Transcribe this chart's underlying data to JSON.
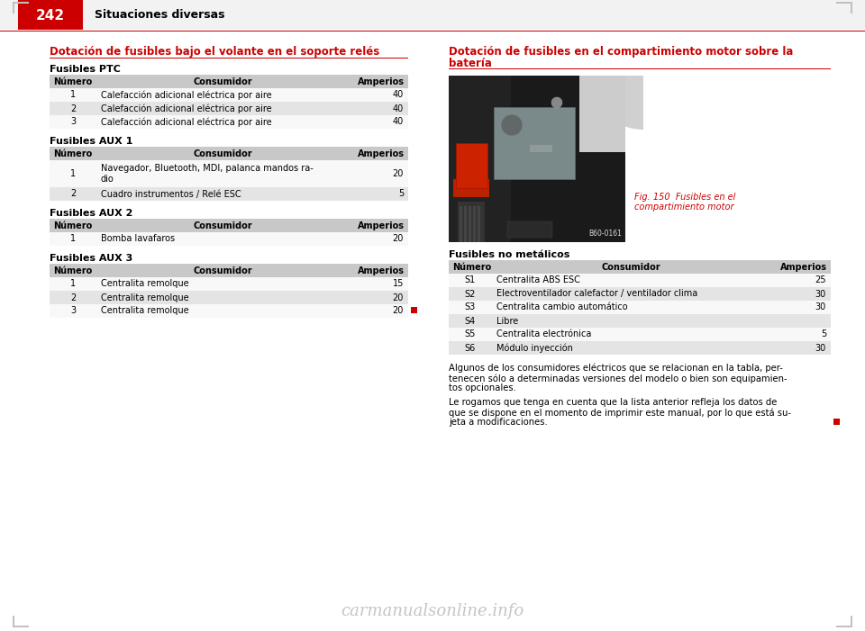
{
  "page_number": "242",
  "header_section": "Situaciones diversas",
  "bg_color": "#ffffff",
  "header_bg": "#cc0000",
  "section1_title": "Dotación de fusibles bajo el volante en el soporte relés",
  "section2_title_line1": "Dotación de fusibles en el compartimiento motor sobre la",
  "section2_title_line2": "batería",
  "ptc_label": "Fusibles PTC",
  "aux1_label": "Fusibles AUX 1",
  "aux2_label": "Fusibles AUX 2",
  "aux3_label": "Fusibles AUX 3",
  "no_metalicos_label": "Fusibles no metálicos",
  "col_headers": [
    "Número",
    "Consumidor",
    "Amperios"
  ],
  "ptc_rows": [
    [
      "1",
      "Calefacción adicional eléctrica por aire",
      "40"
    ],
    [
      "2",
      "Calefacción adicional eléctrica por aire",
      "40"
    ],
    [
      "3",
      "Calefacción adicional eléctrica por aire",
      "40"
    ]
  ],
  "aux1_rows": [
    [
      "1",
      "Navegador, Bluetooth, MDI, palanca mandos ra-\ndio",
      "20"
    ],
    [
      "2",
      "Cuadro instrumentos / Relé ESC",
      "5"
    ]
  ],
  "aux2_rows": [
    [
      "1",
      "Bomba lavafaros",
      "20"
    ]
  ],
  "aux3_rows": [
    [
      "1",
      "Centralita remolque",
      "15"
    ],
    [
      "2",
      "Centralita remolque",
      "20"
    ],
    [
      "3",
      "Centralita remolque",
      "20"
    ]
  ],
  "no_metalicos_rows": [
    [
      "S1",
      "Centralita ABS ESC",
      "25"
    ],
    [
      "S2",
      "Electroventilador calefactor / ventilador clima",
      "30"
    ],
    [
      "S3",
      "Centralita cambio automático",
      "30"
    ],
    [
      "S4",
      "Libre",
      ""
    ],
    [
      "S5",
      "Centralita electrónica",
      "5"
    ],
    [
      "S6",
      "Módulo inyección",
      "30"
    ]
  ],
  "fig_caption_line1": "Fig. 150  Fusibles en el",
  "fig_caption_line2": "compartimiento motor",
  "fig_code": "B60-0161",
  "para1_lines": [
    "Algunos de los consumidores eléctricos que se relacionan en la tabla, per-",
    "tenecen sólo a determinadas versiones del modelo o bien son equipamien-",
    "tos opcionales."
  ],
  "para2_lines": [
    "Le rogamos que tenga en cuenta que la lista anterior refleja los datos de",
    "que se dispone en el momento de imprimir este manual, por lo que está su-",
    "jeta a modificaciones."
  ],
  "watermark": "carmanualsonline.info",
  "table_header_bg": "#c8c8c8",
  "table_alt_row_bg": "#e4e4e4",
  "table_white_row_bg": "#f8f8f8",
  "red_color": "#cc0000",
  "corner_color": "#c0c0c0",
  "header_bar_bg": "#f2f2f2"
}
